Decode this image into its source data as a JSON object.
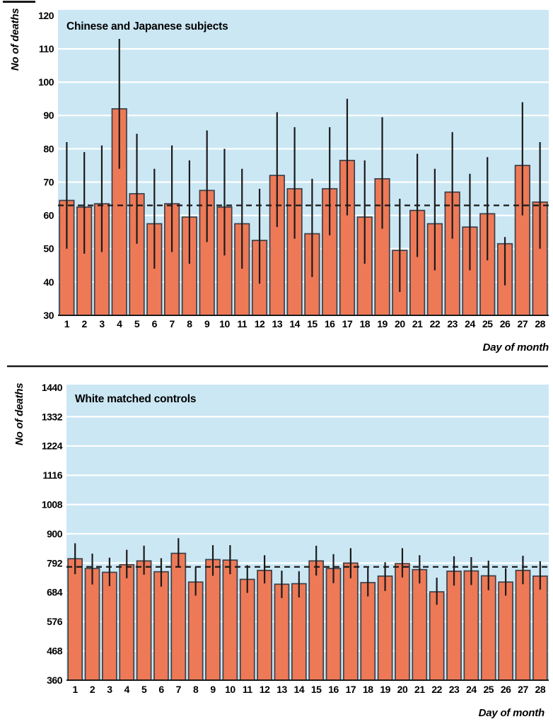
{
  "style": {
    "page_background": "#FFFFFF",
    "plot_background": "#CBE7F4",
    "gridline_color": "#FFFFFF",
    "bar_fill": "#EE7957",
    "bar_stroke": "#3B4048",
    "error_bar_color": "#1B1B1B",
    "dashed_line_color": "#1A1A1A",
    "axis_line_color": "#1A1A1A",
    "divider_color": "#1A1A1A",
    "text_color": "#000000"
  },
  "chart_data": [
    {
      "type": "bar",
      "title": "Chinese and Japanese subjects",
      "ylabel": "No of deaths",
      "xlabel": "Day of month",
      "categories": [
        "1",
        "2",
        "3",
        "4",
        "5",
        "6",
        "7",
        "8",
        "9",
        "10",
        "11",
        "12",
        "13",
        "14",
        "15",
        "16",
        "17",
        "18",
        "19",
        "20",
        "21",
        "22",
        "23",
        "24",
        "25",
        "26",
        "27",
        "28"
      ],
      "values": [
        64.5,
        62.5,
        63.5,
        92,
        66.5,
        57.5,
        63.5,
        59.5,
        67.5,
        62.5,
        57.5,
        52.5,
        72,
        68,
        54.5,
        68,
        76.5,
        59.5,
        71,
        49.5,
        61.5,
        57.5,
        67,
        56.5,
        60.5,
        51.5,
        75,
        64
      ],
      "error_low": [
        50,
        48.5,
        49,
        74,
        51.5,
        44,
        49,
        45.5,
        52,
        48,
        44,
        39.5,
        56.5,
        53,
        41.5,
        54,
        60,
        45.5,
        56,
        37,
        47.5,
        43.5,
        53,
        43.5,
        46.5,
        39,
        60,
        50
      ],
      "error_high": [
        82,
        79,
        81,
        113,
        84.5,
        74,
        81,
        76.5,
        85.5,
        80,
        74,
        68,
        91,
        86.5,
        71,
        86.5,
        95,
        76.5,
        89.5,
        65,
        78.5,
        74,
        85,
        72.5,
        77.5,
        53.5,
        94,
        82
      ],
      "mean_dashed_line": 63,
      "ylim": [
        30,
        120
      ],
      "yticks": [
        30,
        40,
        50,
        60,
        70,
        80,
        90,
        100,
        110,
        120
      ],
      "grid": true,
      "legend": null
    },
    {
      "type": "bar",
      "title": "White matched controls",
      "ylabel": "No of deaths",
      "xlabel": "Day of month",
      "categories": [
        "1",
        "2",
        "3",
        "4",
        "5",
        "6",
        "7",
        "8",
        "9",
        "10",
        "11",
        "12",
        "13",
        "14",
        "15",
        "16",
        "17",
        "18",
        "19",
        "20",
        "21",
        "22",
        "23",
        "24",
        "25",
        "26",
        "27",
        "28"
      ],
      "values": [
        808,
        772,
        758,
        786,
        800,
        760,
        828,
        722,
        805,
        803,
        732,
        765,
        714,
        716,
        800,
        772,
        792,
        720,
        744,
        790,
        768,
        686,
        762,
        763,
        745,
        722,
        765,
        744
      ],
      "error_low": [
        751,
        713,
        707,
        736,
        749,
        705,
        777,
        672,
        745,
        751,
        682,
        717,
        663,
        665,
        746,
        718,
        736,
        669,
        689,
        739,
        717,
        638,
        709,
        711,
        692,
        672,
        714,
        694
      ],
      "error_high": [
        865,
        827,
        812,
        841,
        856,
        810,
        884,
        777,
        858,
        858,
        784,
        821,
        764,
        762,
        856,
        825,
        847,
        775,
        795,
        847,
        821,
        738,
        817,
        814,
        801,
        773,
        819,
        799
      ],
      "mean_dashed_line": 778,
      "ylim": [
        360,
        1440
      ],
      "yticks": [
        360,
        468,
        576,
        684,
        792,
        900,
        1008,
        1116,
        1224,
        1332,
        1440
      ],
      "grid": true,
      "legend": null
    }
  ]
}
